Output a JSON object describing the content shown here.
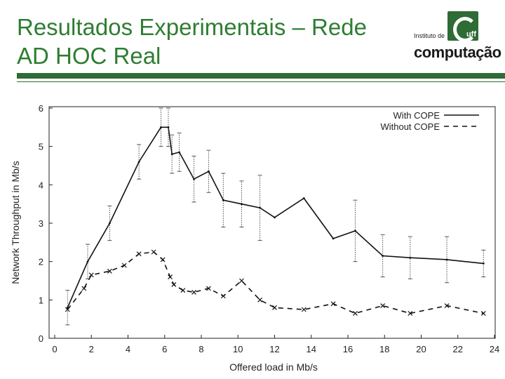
{
  "slide": {
    "title_line1": "Resultados Experimentais – Rede",
    "title_line2": "AD HOC Real",
    "accent_color": "#2e7d32",
    "logo": {
      "line1": "Instituto de",
      "line2": "computação",
      "mark": "uff"
    }
  },
  "chart_data": {
    "type": "line",
    "xlabel": "Offered load in Mb/s",
    "ylabel": "Network Throughput in Mb/s",
    "xlim": [
      0,
      24
    ],
    "ylim": [
      0,
      6
    ],
    "xticks": [
      "0",
      "2",
      "4",
      "6",
      "8",
      "10",
      "12",
      "14",
      "16",
      "18",
      "20",
      "22",
      "24"
    ],
    "yticks": [
      "0",
      "1",
      "2",
      "3",
      "4",
      "5",
      "6"
    ],
    "legend_position": "top-right",
    "series": [
      {
        "name": "With COPE",
        "style": "solid",
        "x": [
          0.7,
          1.8,
          3.0,
          4.6,
          5.8,
          6.2,
          6.4,
          6.8,
          7.6,
          8.4,
          9.2,
          10.2,
          11.2,
          12.0,
          13.6,
          15.2,
          16.4,
          17.9,
          19.4,
          21.4,
          23.4
        ],
        "y": [
          0.8,
          2.0,
          3.0,
          4.6,
          5.5,
          5.5,
          4.8,
          4.85,
          4.15,
          4.35,
          3.6,
          3.5,
          3.4,
          3.15,
          3.65,
          2.6,
          2.8,
          2.15,
          2.1,
          2.05,
          1.95
        ],
        "err": [
          0.45,
          0.45,
          0.45,
          0.45,
          0.5,
          0.5,
          0.5,
          0.5,
          0.6,
          0.55,
          0.7,
          0.6,
          0.85,
          0.0,
          0.0,
          0.0,
          0.8,
          0.55,
          0.55,
          0.6,
          0.35
        ]
      },
      {
        "name": "Without COPE",
        "style": "dashed",
        "x": [
          0.7,
          1.6,
          2.0,
          3.0,
          3.8,
          4.6,
          5.4,
          5.9,
          6.3,
          6.5,
          7.0,
          7.6,
          8.4,
          9.2,
          10.2,
          11.2,
          12.0,
          13.6,
          15.2,
          16.4,
          17.9,
          19.4,
          21.4,
          23.4
        ],
        "y": [
          0.75,
          1.3,
          1.65,
          1.75,
          1.9,
          2.2,
          2.25,
          2.05,
          1.6,
          1.4,
          1.25,
          1.2,
          1.3,
          1.1,
          1.5,
          1.0,
          0.8,
          0.75,
          0.9,
          0.65,
          0.85,
          0.65,
          0.85,
          0.65
        ]
      }
    ]
  }
}
